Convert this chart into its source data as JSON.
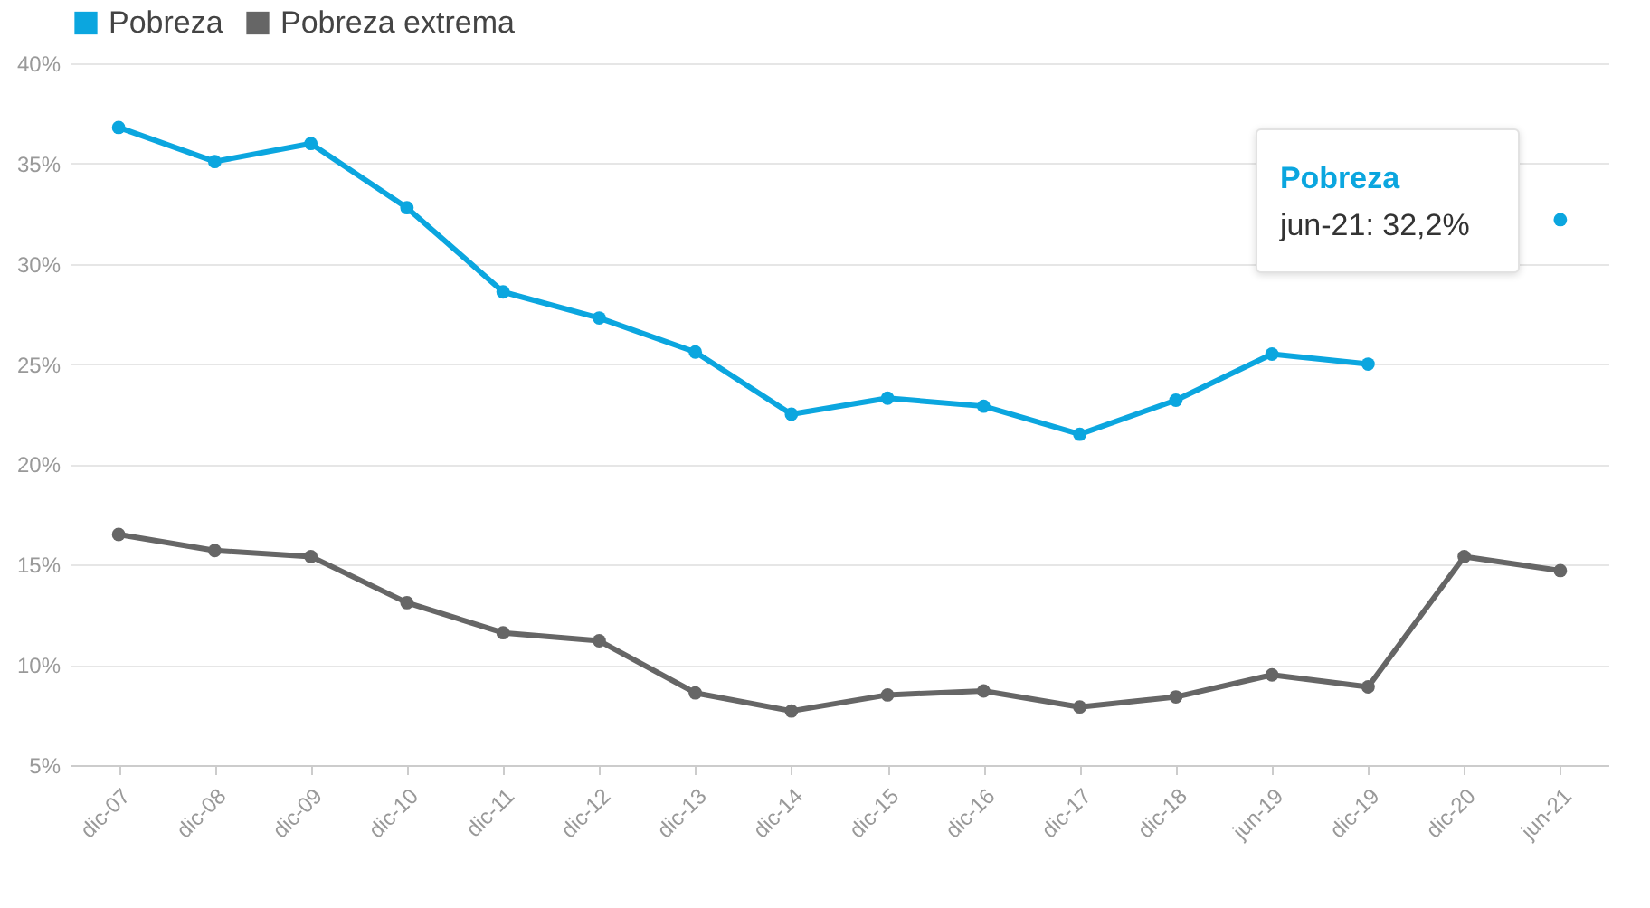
{
  "chart_data": {
    "type": "line",
    "categories": [
      "dic-07",
      "dic-08",
      "dic-09",
      "dic-10",
      "dic-11",
      "dic-12",
      "dic-13",
      "dic-14",
      "dic-15",
      "dic-16",
      "dic-17",
      "dic-18",
      "jun-19",
      "dic-19",
      "dic-20",
      "jun-21"
    ],
    "series": [
      {
        "name": "Pobreza",
        "color": "#0ba6df",
        "values": [
          36.8,
          35.1,
          36.0,
          32.8,
          28.6,
          27.3,
          25.6,
          22.5,
          23.3,
          22.9,
          21.5,
          23.2,
          25.5,
          25.0,
          null,
          32.2
        ]
      },
      {
        "name": "Pobreza extrema",
        "color": "#666666",
        "values": [
          16.5,
          15.7,
          15.4,
          13.1,
          11.6,
          11.2,
          8.6,
          7.7,
          8.5,
          8.7,
          7.9,
          8.4,
          9.5,
          8.9,
          15.4,
          14.7
        ]
      }
    ],
    "ylim": [
      5,
      40
    ],
    "yticks": [
      {
        "value": 5,
        "label": "5%"
      },
      {
        "value": 10,
        "label": "10%"
      },
      {
        "value": 15,
        "label": "15%"
      },
      {
        "value": 20,
        "label": "20%"
      },
      {
        "value": 25,
        "label": "25%"
      },
      {
        "value": 30,
        "label": "30%"
      },
      {
        "value": 35,
        "label": "35%"
      },
      {
        "value": 40,
        "label": "40%"
      }
    ],
    "grid": "y",
    "legend": "top left",
    "marker": "circle",
    "line_style": "solid",
    "annotations": [
      "Pobreza",
      "jun-21: 32,2%"
    ]
  }
}
